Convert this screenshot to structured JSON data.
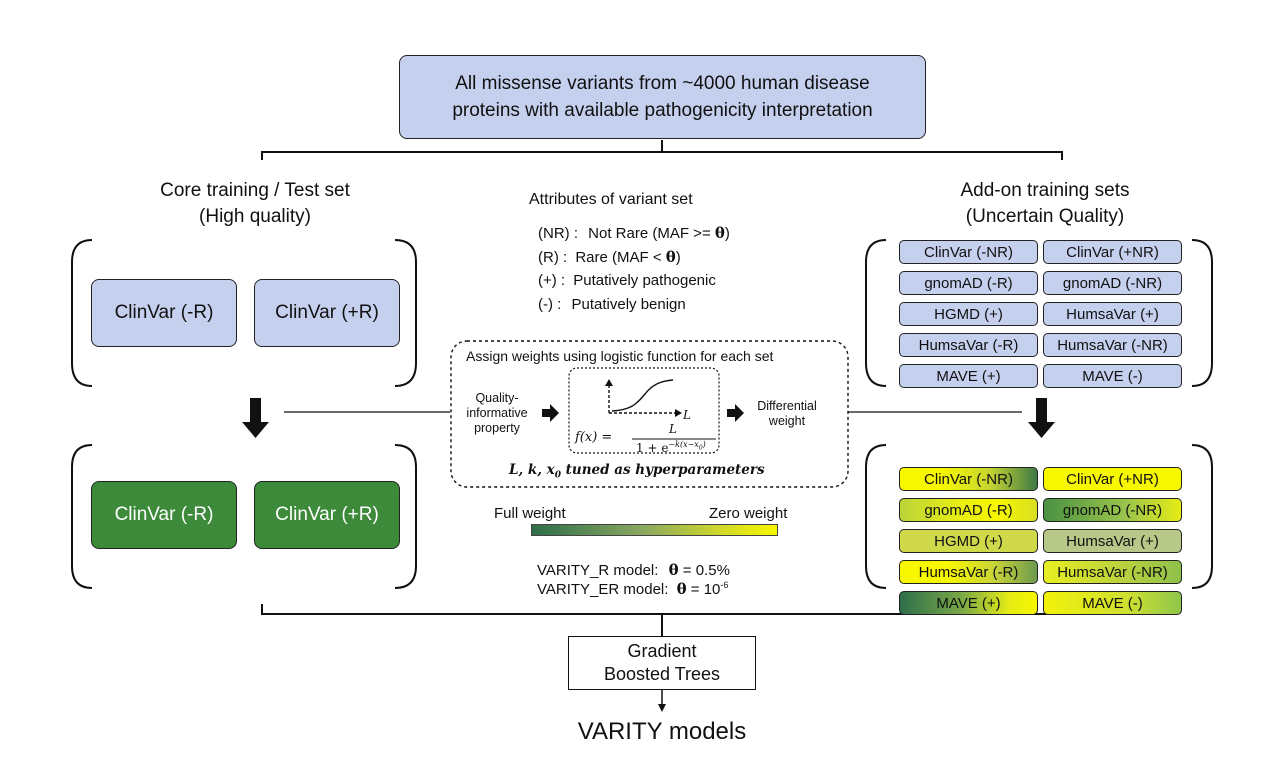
{
  "top_box": {
    "line1": "All missense variants from ~4000 human disease",
    "line2": "proteins with available pathogenicity interpretation"
  },
  "core": {
    "title_line1": "Core training / Test set",
    "title_line2": "(High quality)",
    "left": "ClinVar (-R)",
    "right": "ClinVar (+R)"
  },
  "attributes": {
    "title": "Attributes of variant set",
    "nr_code": "(NR) :",
    "nr_desc": "Not Rare (MAF >= ",
    "theta": "θ",
    "close": ")",
    "r_code": "(R) :",
    "r_desc": "Rare (MAF < ",
    "plus_code": "(+) :",
    "plus_desc": "Putatively pathogenic",
    "minus_code": "(-) :",
    "minus_desc": "Putatively benign"
  },
  "addon": {
    "title_line1": "Add-on training sets",
    "title_line2": "(Uncertain Quality)",
    "chips": [
      [
        "ClinVar (-NR)",
        "ClinVar (+NR)"
      ],
      [
        "gnomAD (-R)",
        "gnomAD (-NR)"
      ],
      [
        "HGMD (+)",
        "HumsaVar (+)"
      ],
      [
        "HumsaVar (-R)",
        "HumsaVar (-NR)"
      ],
      [
        "MAVE (+)",
        "MAVE (-)"
      ]
    ]
  },
  "weighting": {
    "title": "Assign weights using logistic function for each set",
    "input_line1": "Quality-",
    "input_line2": "informative",
    "input_line3": "property",
    "output_line1": "Differential",
    "output_line2": "weight",
    "formula_lhs": "f(x) =",
    "formula_num": "L",
    "formula_den": "1 + e",
    "formula_exp": "−k(x−x",
    "formula_sub": "0",
    "formula_exp_close": ")",
    "axis_x": "L",
    "hyper_text": "L, k, x",
    "hyper_sub": "0",
    "hyper_rest": " tuned as hyperparameters"
  },
  "legend": {
    "full": "Full weight",
    "zero": "Zero weight",
    "color_full": "#2e6e4a",
    "color_zero": "#f7f700"
  },
  "models": {
    "r_label": "VARITY_R model:",
    "r_theta": "θ",
    "r_value": " = 0.5%",
    "er_label": "VARITY_ER model:",
    "er_theta": "θ",
    "er_value": " = 10",
    "er_exp": "-6"
  },
  "gbt": {
    "line1": "Gradient",
    "line2": "Boosted Trees"
  },
  "final": "VARITY models",
  "colors": {
    "blue_fill": "#c5d0ee",
    "dark_green": "#3c8a3a",
    "yellow": "#f7f700"
  }
}
